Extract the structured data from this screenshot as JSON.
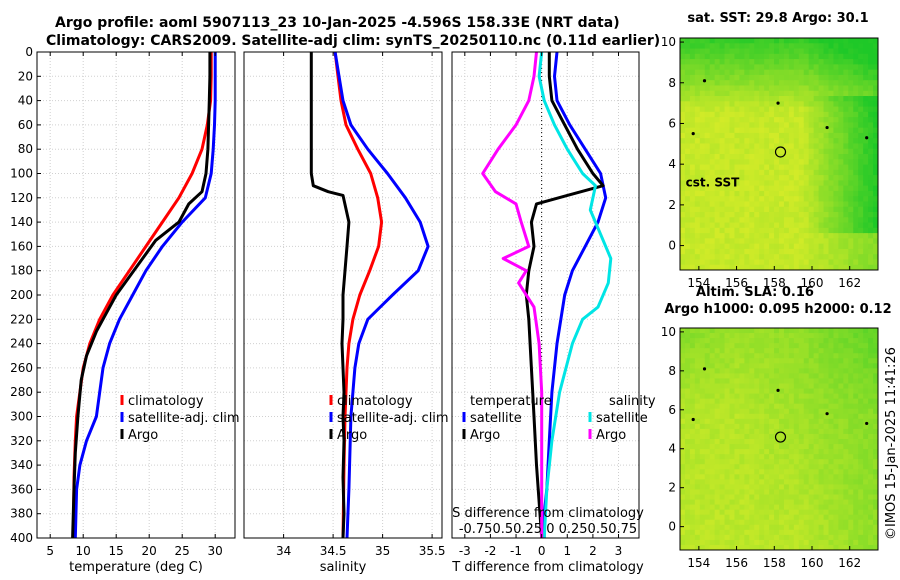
{
  "header": {
    "line1": "Argo profile: aoml 5907113_23 10-Jan-2025 -4.596S 158.33E (NRT data)",
    "line2": "Climatology: CARS2009. Satellite-adj clim: synTS_20250110.nc (0.11d earlier)"
  },
  "stamp": "©IMOS 15-Jan-2025 11:41:26",
  "colors": {
    "climatology": "#ff0000",
    "satellite": "#0000ff",
    "argo": "#000000",
    "cyan": "#00e5e5",
    "magenta": "#ff00ff"
  },
  "chart_data": [
    {
      "type": "line",
      "xlabel": "temperature (deg C)",
      "xlim": [
        3,
        33
      ],
      "ylim": [
        0,
        400
      ],
      "xticks": [
        "5",
        "10",
        "15",
        "20",
        "25",
        "30"
      ],
      "yticks": [
        "0",
        "20",
        "40",
        "60",
        "80",
        "100",
        "120",
        "140",
        "160",
        "180",
        "200",
        "220",
        "240",
        "260",
        "280",
        "300",
        "320",
        "340",
        "360",
        "380",
        "400"
      ],
      "legend": [
        "climatology",
        "satellite-adj. clim",
        "Argo"
      ],
      "series": [
        {
          "name": "climatology",
          "color": "#ff0000",
          "x": [
            29.4,
            29.4,
            29.3,
            28.8,
            28.0,
            26.5,
            24.5,
            22.0,
            19.5,
            17.0,
            14.5,
            12.5,
            11.0,
            10.0,
            9.5,
            9.0,
            8.8,
            8.6,
            8.5
          ],
          "y": [
            0,
            20,
            40,
            60,
            80,
            100,
            120,
            140,
            160,
            180,
            200,
            220,
            240,
            260,
            280,
            300,
            320,
            350,
            400
          ]
        },
        {
          "name": "satellite-adj. clim",
          "color": "#0000ff",
          "x": [
            30.0,
            30.0,
            30.0,
            29.9,
            29.7,
            29.4,
            28.5,
            25.0,
            22.0,
            19.5,
            17.5,
            15.5,
            14.0,
            13.0,
            12.5,
            12.0,
            10.5,
            9.5,
            9.0,
            8.8
          ],
          "y": [
            0,
            20,
            40,
            60,
            80,
            100,
            120,
            140,
            160,
            180,
            200,
            220,
            240,
            260,
            280,
            300,
            320,
            340,
            360,
            400
          ]
        },
        {
          "name": "Argo",
          "color": "#000000",
          "x": [
            29.2,
            29.2,
            29.1,
            29.0,
            28.9,
            28.6,
            28.0,
            26.0,
            24.5,
            21.0,
            19.0,
            17.0,
            15.0,
            13.5,
            12.0,
            10.5,
            9.7,
            9.2,
            8.8,
            8.6,
            8.4
          ],
          "y": [
            0,
            20,
            40,
            60,
            80,
            100,
            115,
            125,
            140,
            155,
            170,
            185,
            200,
            215,
            230,
            250,
            270,
            300,
            330,
            360,
            400
          ]
        }
      ]
    },
    {
      "type": "line",
      "xlabel": "salinity",
      "xlim": [
        33.6,
        35.6
      ],
      "ylim": [
        0,
        400
      ],
      "xticks": [
        "34",
        "34.5",
        "35",
        "35.5"
      ],
      "legend": [
        "climatology",
        "satellite-adj. clim",
        "Argo"
      ],
      "series": [
        {
          "name": "climatology",
          "color": "#ff0000",
          "x": [
            34.52,
            34.55,
            34.58,
            34.63,
            34.75,
            34.88,
            34.95,
            34.99,
            34.96,
            34.87,
            34.77,
            34.7,
            34.66,
            34.64,
            34.63,
            34.62,
            34.61,
            34.6
          ],
          "y": [
            0,
            20,
            40,
            60,
            80,
            100,
            120,
            140,
            160,
            180,
            200,
            220,
            240,
            260,
            280,
            300,
            340,
            400
          ]
        },
        {
          "name": "satellite-adj. clim",
          "color": "#0000ff",
          "x": [
            34.52,
            34.56,
            34.6,
            34.68,
            34.85,
            35.05,
            35.23,
            35.38,
            35.46,
            35.36,
            35.1,
            34.85,
            34.76,
            34.72,
            34.7,
            34.68,
            34.67,
            34.66,
            34.64
          ],
          "y": [
            0,
            20,
            40,
            60,
            80,
            100,
            120,
            140,
            160,
            180,
            200,
            220,
            240,
            260,
            280,
            300,
            330,
            360,
            400
          ]
        },
        {
          "name": "Argo",
          "color": "#000000",
          "x": [
            34.28,
            34.28,
            34.28,
            34.28,
            34.28,
            34.28,
            34.3,
            34.45,
            34.6,
            34.66,
            34.64,
            34.62,
            34.6,
            34.6,
            34.59,
            34.6,
            34.61,
            34.6,
            34.61,
            34.6,
            34.61,
            34.6
          ],
          "y": [
            0,
            20,
            40,
            60,
            80,
            100,
            110,
            115,
            118,
            140,
            160,
            180,
            200,
            220,
            240,
            260,
            280,
            300,
            320,
            350,
            380,
            400
          ]
        }
      ]
    },
    {
      "type": "line",
      "xlabel": "T difference from climatology",
      "secondary_xlabel": "S difference from climatology",
      "secondary_xticks": "-0.750.50.25  0  0.250.50.75",
      "xlim": [
        -3.5,
        3.8
      ],
      "ylim": [
        0,
        400
      ],
      "xticks": [
        "-3",
        "-2",
        "-1",
        "0",
        "1",
        "2",
        "3"
      ],
      "legend_left_title": "temperature",
      "legend_right_title": "salinity",
      "legend": [
        "satellite",
        "Argo",
        "satellite",
        "Argo"
      ],
      "series": [
        {
          "name": "temperature satellite",
          "color": "#0000ff",
          "x": [
            0.6,
            0.5,
            0.6,
            1.1,
            1.7,
            2.3,
            2.5,
            2.2,
            1.7,
            1.2,
            0.9,
            0.6,
            0.4,
            0.3,
            0.2,
            0.1,
            0.1
          ],
          "y": [
            0,
            20,
            40,
            60,
            80,
            100,
            120,
            140,
            160,
            180,
            200,
            240,
            280,
            320,
            360,
            380,
            400
          ]
        },
        {
          "name": "temperature Argo",
          "color": "#000000",
          "x": [
            0.3,
            0.3,
            0.4,
            0.9,
            1.4,
            2.0,
            2.4,
            1.0,
            -0.2,
            -0.4,
            -0.3,
            -0.5,
            -0.6,
            -0.5,
            -0.4,
            -0.3,
            -0.2,
            -0.1,
            0.0
          ],
          "y": [
            0,
            20,
            40,
            60,
            80,
            100,
            110,
            118,
            125,
            140,
            160,
            180,
            200,
            220,
            260,
            300,
            340,
            370,
            400
          ]
        },
        {
          "name": "salinity satellite",
          "color": "#00e5e5",
          "x": [
            0.0,
            -0.1,
            0.1,
            0.5,
            1.0,
            1.6,
            2.1,
            1.9,
            2.3,
            2.7,
            2.6,
            2.2,
            1.6,
            1.2,
            0.7,
            0.4,
            0.2,
            0.1
          ],
          "y": [
            0,
            20,
            40,
            60,
            80,
            100,
            110,
            130,
            150,
            170,
            190,
            210,
            220,
            240,
            280,
            320,
            360,
            400
          ]
        },
        {
          "name": "salinity Argo",
          "color": "#ff00ff",
          "x": [
            -0.2,
            -0.3,
            -0.5,
            -1.0,
            -1.7,
            -2.3,
            -1.8,
            -1.0,
            -0.8,
            -0.5,
            -1.5,
            -0.6,
            -0.9,
            -0.3,
            -0.1,
            0.0,
            0.0,
            0.0
          ],
          "y": [
            0,
            20,
            40,
            60,
            80,
            100,
            115,
            125,
            140,
            160,
            170,
            180,
            190,
            210,
            240,
            280,
            340,
            400
          ]
        }
      ]
    },
    {
      "type": "heatmap",
      "title": "sat. SST: 29.8 Argo: 30.1",
      "xlim": [
        153,
        163.5
      ],
      "ylim": [
        -1.2,
        10.2
      ],
      "xticks": [
        "154",
        "156",
        "158",
        "160",
        "162"
      ],
      "yticks": [
        "0",
        "2",
        "4",
        "6",
        "8",
        "10"
      ],
      "annotation": "cst. SST",
      "profile_marker": [
        158.33,
        4.6
      ]
    },
    {
      "type": "heatmap",
      "title_line1": "Altim. SLA: 0.16",
      "title_line2": "Argo h1000: 0.095 h2000: 0.12",
      "xlim": [
        153,
        163.5
      ],
      "ylim": [
        -1.2,
        10.2
      ],
      "xticks": [
        "154",
        "156",
        "158",
        "160",
        "162"
      ],
      "yticks": [
        "0",
        "2",
        "4",
        "6",
        "8",
        "10"
      ],
      "profile_marker": [
        158.33,
        4.6
      ]
    }
  ]
}
